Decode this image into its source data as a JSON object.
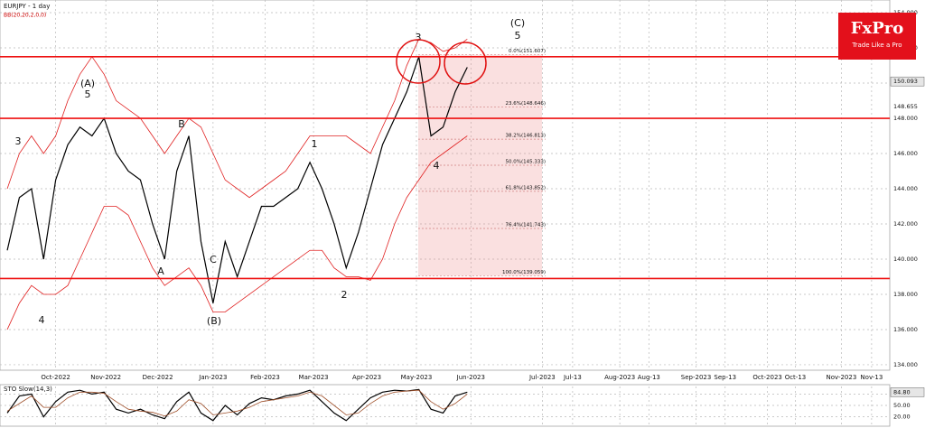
{
  "header": {
    "symbol": "EURJPY - 1 day",
    "indicator": "BB(20,20,2,0,0)"
  },
  "logo": {
    "name": "FxPro",
    "tagline": "Trade Like a Pro"
  },
  "chart_data": [
    {
      "type": "line",
      "categories": [
        null,
        null,
        null,
        null,
        null,
        null,
        null,
        null,
        null,
        null,
        null,
        null,
        null,
        null,
        null,
        null,
        null,
        null,
        null,
        null,
        null,
        null,
        null,
        null,
        null,
        null,
        null,
        null,
        null,
        null,
        null,
        null,
        null,
        null,
        null,
        null,
        null,
        null,
        null
      ],
      "xlim": [
        -0.6,
        72.9
      ],
      "xticks": [
        {
          "value": 4.0,
          "label": "Oct-2022"
        },
        {
          "value": 8.14,
          "label": "Nov-2022"
        },
        {
          "value": 12.43,
          "label": "Dec-2022"
        },
        {
          "value": 17.0,
          "label": "Jan-2023"
        },
        {
          "value": 21.3,
          "label": "Feb-2023"
        },
        {
          "value": 25.3,
          "label": "Mar-2023"
        },
        {
          "value": 29.7,
          "label": "Apr-2023"
        },
        {
          "value": 33.8,
          "label": "May-2023"
        },
        {
          "value": 38.3,
          "label": "Jun-2023"
        },
        {
          "value": 44.2,
          "label": "Jul-2023"
        },
        {
          "value": 46.7,
          "label": "Jul-13"
        },
        {
          "value": 50.6,
          "label": "Aug-2023"
        },
        {
          "value": 53.0,
          "label": "Aug-13"
        },
        {
          "value": 56.9,
          "label": "Sep-2023"
        },
        {
          "value": 59.3,
          "label": "Sep-13"
        },
        {
          "value": 62.8,
          "label": "Oct-2023"
        },
        {
          "value": 65.1,
          "label": "Oct-13"
        },
        {
          "value": 68.9,
          "label": "Nov-2023"
        },
        {
          "value": 71.4,
          "label": "Nov-13"
        }
      ],
      "ylim": [
        133.69,
        154.72
      ],
      "yticks": [
        {
          "value": 154,
          "label": "154.000"
        },
        {
          "value": 152,
          "label": "152.000"
        },
        {
          "value": 150,
          "label": "150.000"
        },
        {
          "value": 148,
          "label": "148.000"
        },
        {
          "value": 146,
          "label": "146.000"
        },
        {
          "value": 144,
          "label": "144.000"
        },
        {
          "value": 142,
          "label": "142.000"
        },
        {
          "value": 140,
          "label": "140.000"
        },
        {
          "value": 138,
          "label": "138.000"
        },
        {
          "value": 136,
          "label": "136.000"
        },
        {
          "value": 134,
          "label": "134.000"
        }
      ],
      "grid": true,
      "series": [
        {
          "color": "#000000",
          "values": [
            140.5,
            143.5,
            144.0,
            140.0,
            144.5,
            146.5,
            147.5,
            147.0,
            148.0,
            146.0,
            145.0,
            144.5,
            142.0,
            140.0,
            145.0,
            147.0,
            141.0,
            137.5,
            141.0,
            139.0,
            141.0,
            143.0,
            143.0,
            143.5,
            144.0,
            145.5,
            144.0,
            142.0,
            139.5,
            141.5,
            144.0,
            146.5,
            148.0,
            149.5,
            151.5,
            147.0,
            147.5,
            149.5,
            150.9
          ]
        },
        {
          "color": "#e02020",
          "values": [
            144,
            146,
            147,
            146,
            147,
            149,
            150.5,
            151.5,
            150.5,
            149,
            148.5,
            148,
            147,
            146,
            147,
            148,
            147.5,
            146,
            144.5,
            144,
            143.5,
            144,
            144.5,
            145,
            146,
            147,
            147,
            147,
            147,
            146.5,
            146,
            147.5,
            149,
            151,
            152.5,
            152.3,
            151.8,
            152,
            152.5
          ]
        },
        {
          "color": "#e02020",
          "values": [
            136,
            137.5,
            138.5,
            138,
            138,
            138.5,
            140,
            141.5,
            143,
            143,
            142.5,
            141,
            139.5,
            138.5,
            139,
            139.5,
            138.5,
            137,
            137,
            137.5,
            138,
            138.5,
            139,
            139.5,
            140,
            140.5,
            140.5,
            139.5,
            139,
            139,
            138.8,
            140,
            142,
            143.5,
            144.5,
            145.5,
            146,
            146.5,
            147
          ]
        }
      ],
      "levels": [
        151.5,
        148.0,
        138.9
      ],
      "level_color": "#ee1111",
      "price_markers": [
        {
          "value": 150.093,
          "label": "150.093"
        },
        {
          "value": 148.655,
          "label": "148.655"
        }
      ],
      "fib_levels": [
        {
          "value": 151.607,
          "label": "0.0%(151.607)"
        },
        {
          "value": 148.646,
          "label": "23.6%(148.646)"
        },
        {
          "value": 146.813,
          "label": "38.2%(146.813)"
        },
        {
          "value": 145.333,
          "label": "50.0%(145.333)"
        },
        {
          "value": 143.852,
          "label": "61.8%(143.852)"
        },
        {
          "value": 141.743,
          "label": "76.4%(141.743)"
        },
        {
          "value": 139.059,
          "label": "100.0%(139.059)"
        }
      ],
      "annotations": [
        "3",
        "4",
        "(A)",
        "5",
        "A",
        "B",
        "C",
        "(B)",
        "1",
        "2",
        "3",
        "4",
        "(C)",
        "5"
      ]
    },
    {
      "type": "line",
      "title": "STO Slow(14,3)",
      "categories": [
        null,
        null,
        null,
        null,
        null,
        null,
        null,
        null,
        null,
        null,
        null,
        null,
        null,
        null,
        null,
        null,
        null,
        null,
        null,
        null,
        null,
        null,
        null,
        null,
        null,
        null,
        null,
        null,
        null,
        null,
        null,
        null,
        null,
        null,
        null,
        null,
        null,
        null,
        null
      ],
      "xlim": [
        -0.6,
        72.9
      ],
      "ylim": [
        0,
        100
      ],
      "yticks": [
        {
          "value": 80,
          "label": "80.00"
        },
        {
          "value": 50,
          "label": "50.00"
        },
        {
          "value": 20,
          "label": "20.00"
        }
      ],
      "price_markers": [
        {
          "value": 84.8,
          "label": "84.80"
        }
      ],
      "series": [
        {
          "color": "#000000",
          "values": [
            30,
            75,
            80,
            20,
            60,
            85,
            90,
            80,
            85,
            40,
            30,
            40,
            25,
            15,
            60,
            85,
            30,
            10,
            50,
            25,
            55,
            70,
            65,
            75,
            80,
            90,
            60,
            30,
            10,
            40,
            70,
            85,
            90,
            88,
            92,
            40,
            30,
            75,
            85
          ]
        },
        {
          "color": "#a0522d",
          "values": [
            35,
            55,
            75,
            45,
            45,
            70,
            85,
            85,
            82,
            60,
            40,
            35,
            32,
            22,
            35,
            65,
            55,
            25,
            30,
            35,
            45,
            60,
            65,
            70,
            75,
            85,
            75,
            50,
            25,
            30,
            55,
            75,
            85,
            88,
            90,
            60,
            40,
            55,
            80
          ]
        }
      ]
    }
  ]
}
